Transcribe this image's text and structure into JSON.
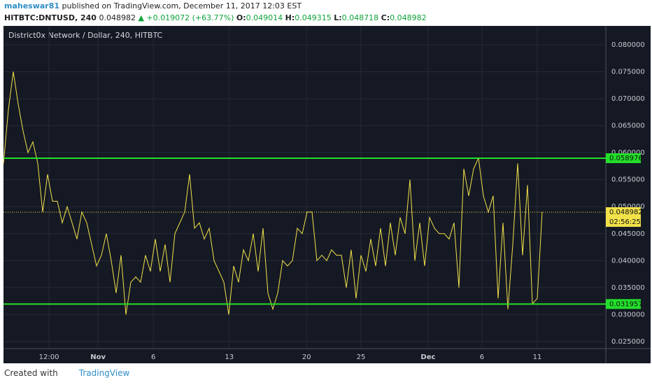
{
  "header": {
    "author": "maheswar81",
    "published": "published on TradingView.com, December 11, 2017 12:03 EST",
    "symbol": "HITBTC:DNTUSD, 240",
    "price": "0.048982",
    "change": "▲ +0.019072 (+63.77%)",
    "o_label": "O:",
    "o": "0.049014",
    "h_label": "H:",
    "h": "0.049315",
    "l_label": "L:",
    "l": "0.048718",
    "c_label": "C:",
    "c": "0.048982"
  },
  "footer": {
    "created": "Created with",
    "brand": "TradingView"
  },
  "chart_data": {
    "type": "line",
    "title": "District0x Network / Dollar, 240, HITBTC",
    "color": "#f2e24a",
    "level_color": "#22e02a",
    "grid": true,
    "values": [
      0.058,
      0.068,
      0.075,
      0.069,
      0.064,
      0.06,
      0.062,
      0.058,
      0.049,
      0.056,
      0.051,
      0.051,
      0.047,
      0.05,
      0.047,
      0.044,
      0.049,
      0.047,
      0.043,
      0.039,
      0.041,
      0.045,
      0.04,
      0.034,
      0.041,
      0.03,
      0.036,
      0.037,
      0.036,
      0.041,
      0.038,
      0.044,
      0.038,
      0.043,
      0.036,
      0.045,
      0.047,
      0.049,
      0.056,
      0.046,
      0.047,
      0.044,
      0.046,
      0.04,
      0.038,
      0.036,
      0.03,
      0.039,
      0.036,
      0.042,
      0.04,
      0.045,
      0.038,
      0.046,
      0.034,
      0.031,
      0.034,
      0.04,
      0.039,
      0.04,
      0.046,
      0.045,
      0.049,
      0.049,
      0.04,
      0.041,
      0.04,
      0.042,
      0.041,
      0.041,
      0.035,
      0.042,
      0.033,
      0.041,
      0.038,
      0.044,
      0.039,
      0.046,
      0.039,
      0.047,
      0.041,
      0.048,
      0.045,
      0.055,
      0.04,
      0.047,
      0.039,
      0.048,
      0.046,
      0.045,
      0.045,
      0.044,
      0.047,
      0.035,
      0.057,
      0.052,
      0.057,
      0.059,
      0.052,
      0.049,
      0.052,
      0.033,
      0.047,
      0.031,
      0.043,
      0.058,
      0.041,
      0.054,
      0.032,
      0.033,
      0.049
    ],
    "levels": [
      0.058976,
      0.031957
    ],
    "last": 0.048982,
    "countdown": "02:56:25",
    "xlim": [
      0,
      123
    ],
    "xticks": [
      {
        "value": 9.3,
        "label": "12:00"
      },
      {
        "value": 19.3,
        "label": "Nov"
      },
      {
        "value": 30.6,
        "label": "6"
      },
      {
        "value": 46.1,
        "label": "13"
      },
      {
        "value": 61.9,
        "label": "20"
      },
      {
        "value": 73,
        "label": "25"
      },
      {
        "value": 86.7,
        "label": "Dec"
      },
      {
        "value": 97.7,
        "label": "6"
      },
      {
        "value": 109,
        "label": "11"
      }
    ],
    "ylim": [
      0.0237,
      0.0831
    ],
    "yticks": [
      {
        "value": 0.025,
        "label": "0.025000"
      },
      {
        "value": 0.03,
        "label": "0.030000"
      },
      {
        "value": 0.035,
        "label": "0.035000"
      },
      {
        "value": 0.04,
        "label": "0.040000"
      },
      {
        "value": 0.045,
        "label": "0.045000"
      },
      {
        "value": 0.05,
        "label": "0.050000"
      },
      {
        "value": 0.055,
        "label": "0.055000"
      },
      {
        "value": 0.06,
        "label": "0.060000"
      },
      {
        "value": 0.065,
        "label": "0.065000"
      },
      {
        "value": 0.07,
        "label": "0.070000"
      },
      {
        "value": 0.075,
        "label": "0.075000"
      },
      {
        "value": 0.08,
        "label": "0.080000"
      }
    ]
  }
}
